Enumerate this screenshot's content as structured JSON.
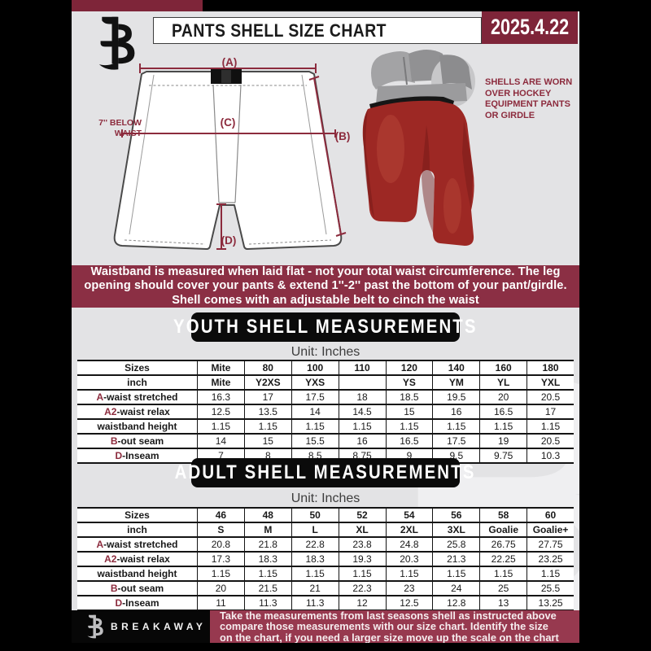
{
  "header": {
    "title": "PANTS SHELL SIZE CHART",
    "date": "2025.4.22"
  },
  "diagram": {
    "label_a": "(A)",
    "label_b": "(B)",
    "label_c": "(C)",
    "label_d": "(D)",
    "waist_note_lines": [
      "7'' BELOW",
      "WAIST"
    ],
    "photo_note_lines": [
      "SHELLS ARE WORN",
      "OVER HOCKEY",
      "EQUIPMENT PANTS",
      "OR GIRDLE"
    ]
  },
  "notice_lines": [
    "Waistband is measured when laid flat - not your total waist circumference. The leg",
    "opening should cover your pants & extend 1''-2'' past the bottom of your pant/girdle.",
    "Shell comes with an adjustable belt to cinch the waist"
  ],
  "youth": {
    "heading": "YOUTH SHELL MEASUREMENTS",
    "unit": "Unit: Inches",
    "sizes_label": "Sizes",
    "inch_label": "inch",
    "columns": [
      "Mite",
      "80",
      "100",
      "110",
      "120",
      "140",
      "160",
      "180"
    ],
    "inch_values": [
      "Mite",
      "Y2XS",
      "YXS",
      "",
      "YS",
      "YM",
      "YL",
      "YXL"
    ],
    "rows": [
      {
        "prefix": "A",
        "label": "-waist stretched",
        "values": [
          "16.3",
          "17",
          "17.5",
          "18",
          "18.5",
          "19.5",
          "20",
          "20.5"
        ]
      },
      {
        "prefix": "A2",
        "label": "-waist relax",
        "values": [
          "12.5",
          "13.5",
          "14",
          "14.5",
          "15",
          "16",
          "16.5",
          "17"
        ]
      },
      {
        "prefix": "",
        "label": "waistband height",
        "values": [
          "1.15",
          "1.15",
          "1.15",
          "1.15",
          "1.15",
          "1.15",
          "1.15",
          "1.15"
        ]
      },
      {
        "prefix": "B",
        "label": "-out seam",
        "values": [
          "14",
          "15",
          "15.5",
          "16",
          "16.5",
          "17.5",
          "19",
          "20.5"
        ]
      },
      {
        "prefix": "D",
        "label": "-Inseam",
        "values": [
          "7",
          "8",
          "8.5",
          "8.75",
          "9",
          "9.5",
          "9.75",
          "10.3"
        ]
      }
    ]
  },
  "adult": {
    "heading": "ADULT SHELL MEASUREMENTS",
    "unit": "Unit: Inches",
    "sizes_label": "Sizes",
    "inch_label": "inch",
    "columns": [
      "46",
      "48",
      "50",
      "52",
      "54",
      "56",
      "58",
      "60"
    ],
    "inch_values": [
      "S",
      "M",
      "L",
      "XL",
      "2XL",
      "3XL",
      "Goalie",
      "Goalie+"
    ],
    "rows": [
      {
        "prefix": "A",
        "label": "-waist stretched",
        "values": [
          "20.8",
          "21.8",
          "22.8",
          "23.8",
          "24.8",
          "25.8",
          "26.75",
          "27.75"
        ]
      },
      {
        "prefix": "A2",
        "label": "-waist relax",
        "values": [
          "17.3",
          "18.3",
          "18.3",
          "19.3",
          "20.3",
          "21.3",
          "22.25",
          "23.25"
        ]
      },
      {
        "prefix": "",
        "label": "waistband height",
        "values": [
          "1.15",
          "1.15",
          "1.15",
          "1.15",
          "1.15",
          "1.15",
          "1.15",
          "1.15"
        ]
      },
      {
        "prefix": "B",
        "label": "-out seam",
        "values": [
          "20",
          "21.5",
          "21",
          "22.3",
          "23",
          "24",
          "25",
          "25.5"
        ]
      },
      {
        "prefix": "D",
        "label": "-Inseam",
        "values": [
          "11",
          "11.3",
          "11.3",
          "12",
          "12.5",
          "12.8",
          "13",
          "13.25"
        ]
      }
    ]
  },
  "footer": {
    "brand": "BREAKAWAY",
    "note_lines": [
      "Take the measurements from last seasons shell as instructed above",
      "compare those measurements with our size chart. Identify the size",
      "on the chart, if you need a larger size move up the scale on the chart"
    ]
  },
  "watermark_letter": "B",
  "colors": {
    "maroon": "#8b2f44",
    "maroon-dark": "#7e2539",
    "maroon-footer": "#97394f",
    "accent": "#8c2b3d"
  }
}
